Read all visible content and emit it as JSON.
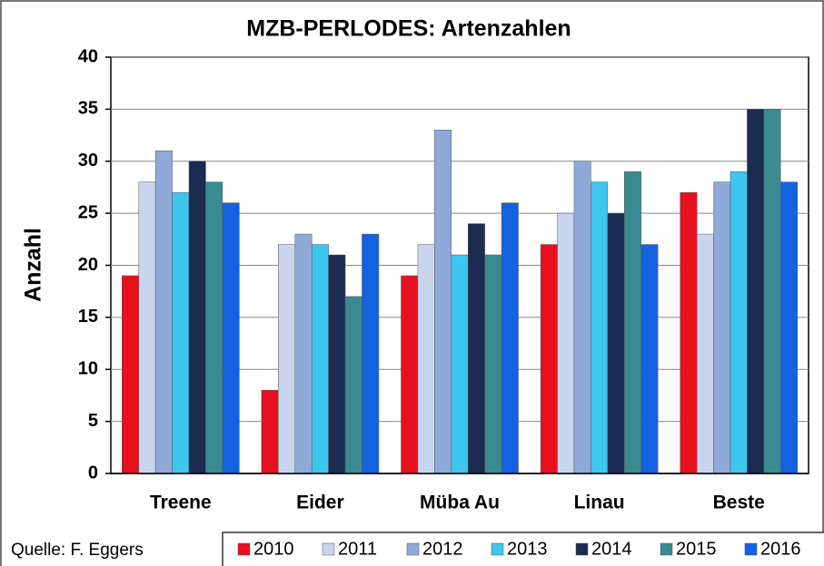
{
  "chart_data": {
    "type": "bar",
    "title": "MZB-PERLODES: Artenzahlen",
    "y_label": "Anzahl",
    "source": "Quelle: F. Eggers",
    "categories": [
      "Treene",
      "Eider",
      "Müba Au",
      "Linau",
      "Beste"
    ],
    "series": [
      {
        "name": "2010",
        "color": "#e8101c",
        "values": [
          19,
          8,
          19,
          22,
          27
        ]
      },
      {
        "name": "2011",
        "color": "#c9d5ee",
        "values": [
          28,
          22,
          22,
          25,
          23
        ]
      },
      {
        "name": "2012",
        "color": "#8faad9",
        "values": [
          31,
          23,
          33,
          30,
          28
        ]
      },
      {
        "name": "2013",
        "color": "#3cc6f0",
        "values": [
          27,
          22,
          21,
          28,
          29
        ]
      },
      {
        "name": "2014",
        "color": "#1b2b52",
        "values": [
          30,
          21,
          24,
          25,
          35
        ]
      },
      {
        "name": "2015",
        "color": "#3a8a92",
        "values": [
          28,
          17,
          21,
          29,
          35
        ]
      },
      {
        "name": "2016",
        "color": "#1262e2",
        "values": [
          26,
          23,
          26,
          22,
          28
        ]
      }
    ],
    "ylim": [
      0,
      40
    ],
    "yticks": [
      0,
      5,
      10,
      15,
      20,
      25,
      30,
      35,
      40
    ],
    "grid": true
  }
}
